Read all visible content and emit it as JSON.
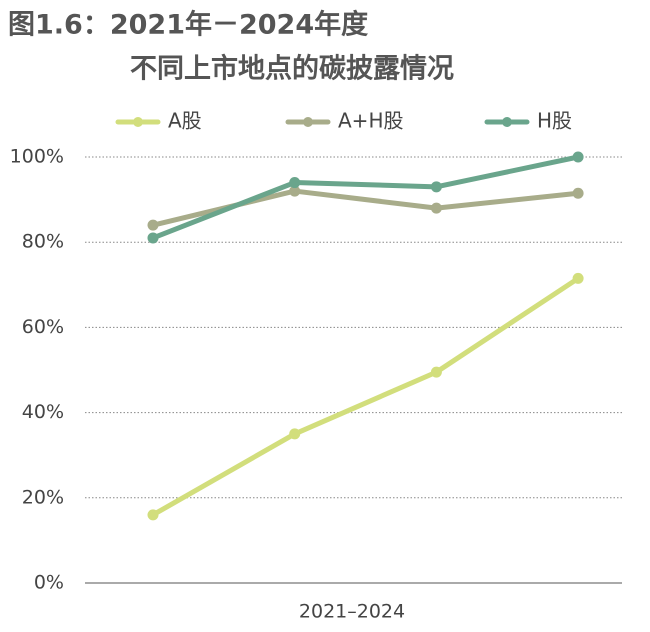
{
  "chart_data": {
    "type": "line",
    "title": "图1.6：2021年－2024年度",
    "subtitle": "不同上市地点的碳披露情况",
    "x_label": "2021–2024",
    "categories": [
      null,
      null,
      null,
      null
    ],
    "series": [
      {
        "name": "A股",
        "color": "#d2de7c",
        "values": [
          16,
          35,
          49.5,
          71.5
        ]
      },
      {
        "name": "A+H股",
        "color": "#a8ac8a",
        "values": [
          84,
          92,
          88,
          91.5
        ]
      },
      {
        "name": "H股",
        "color": "#6aa58c",
        "values": [
          81,
          94,
          93,
          100
        ]
      }
    ],
    "ylim": [
      0,
      100
    ],
    "yticks": [
      {
        "value": 0,
        "label": "0%"
      },
      {
        "value": 20,
        "label": "20%"
      },
      {
        "value": 40,
        "label": "40%"
      },
      {
        "value": 60,
        "label": "60%"
      },
      {
        "value": 80,
        "label": "80%"
      },
      {
        "value": 100,
        "label": "100%"
      }
    ],
    "grid": true,
    "legend": "top"
  }
}
